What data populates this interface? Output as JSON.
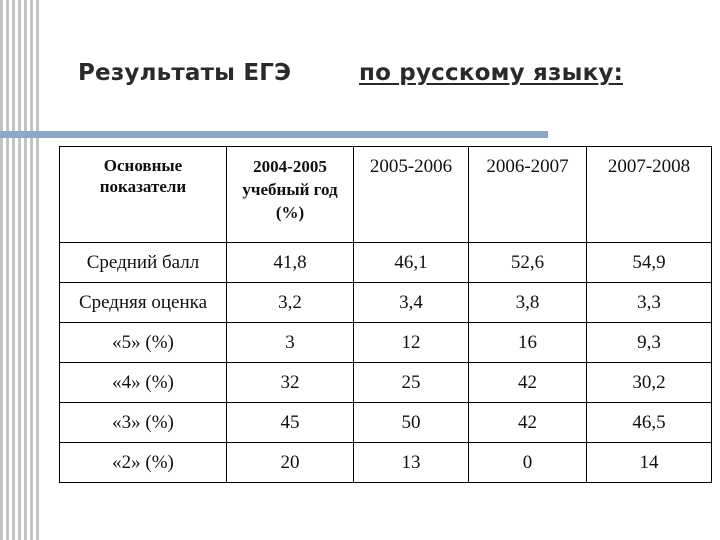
{
  "slide": {
    "title_part1": "Результаты ЕГЭ",
    "title_part2": "по русскому языку:"
  },
  "table": {
    "header": {
      "col0": "Основные показатели",
      "col1": "2004-2005 учебный год (%)",
      "col2": "2005-2006",
      "col3": "2006-2007",
      "col4": "2007-2008"
    },
    "rows": [
      [
        "Средний балл",
        "41,8",
        "46,1",
        "52,6",
        "54,9"
      ],
      [
        "Средняя оценка",
        "3,2",
        "3,4",
        "3,8",
        "3,3"
      ],
      [
        "«5» (%)",
        "3",
        "12",
        "16",
        "9,3"
      ],
      [
        "«4» (%)",
        "32",
        "25",
        "42",
        "30,2"
      ],
      [
        "«3» (%)",
        "45",
        "50",
        "42",
        "46,5"
      ],
      [
        "«2» (%)",
        "20",
        "13",
        "0",
        "14"
      ]
    ]
  },
  "colors": {
    "rule": "#8da7c9",
    "stripes": "#c4c4c4"
  }
}
